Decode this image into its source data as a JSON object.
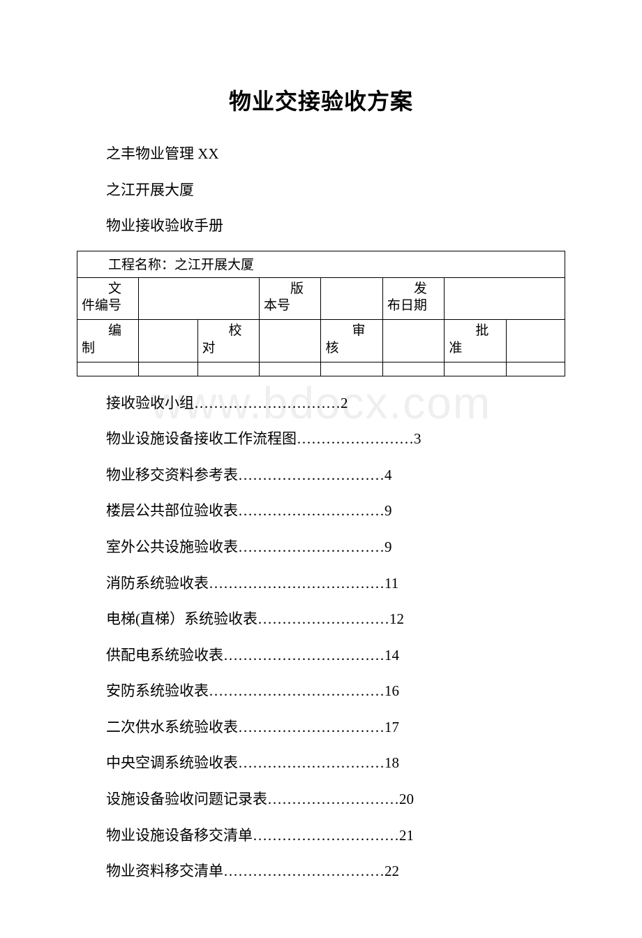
{
  "title": "物业交接验收方案",
  "intro": {
    "line1": "之丰物业管理 XX",
    "line2": "之江开展大厦",
    "line3": "物业接收验收手册"
  },
  "meta_table": {
    "project_label": "工程名称：之江开展大厦",
    "row2": {
      "c1": "文件编号",
      "c2": "",
      "c3": "版本号",
      "c4": "",
      "c5": "发布日期",
      "c6": ""
    },
    "row3": {
      "c1": "编制",
      "c2": "",
      "c3": "校对",
      "c4": "",
      "c5": "审核",
      "c6": "",
      "c7": "批准",
      "c8": ""
    }
  },
  "toc": [
    {
      "label": "接收验收小组",
      "dots": "…………………………",
      "page": "2"
    },
    {
      "label": "物业设施设备接收工作流程图",
      "dots": "……………………",
      "page": "3"
    },
    {
      "label": "物业移交资料参考表",
      "dots": "…………………………",
      "page": "4"
    },
    {
      "label": "楼层公共部位验收表",
      "dots": "…………………………",
      "page": "9"
    },
    {
      "label": "室外公共设施验收表",
      "dots": "…………………………",
      "page": "9"
    },
    {
      "label": "消防系统验收表",
      "dots": "………………………………",
      "page": "11"
    },
    {
      "label": "电梯(直梯）系统验收表",
      "dots": "………………………",
      "page": "12"
    },
    {
      "label": "供配电系统验收表",
      "dots": "……………………………",
      "page": "14"
    },
    {
      "label": "安防系统验收表",
      "dots": "………………………………",
      "page": "16"
    },
    {
      "label": "二次供水系统验收表",
      "dots": "…………………………",
      "page": "17"
    },
    {
      "label": "中央空调系统验收表",
      "dots": "…………………………",
      "page": "18"
    },
    {
      "label": "设施设备验收问题记录表",
      "dots": "………………………",
      "page": "20"
    },
    {
      "label": "物业设施设备移交清单",
      "dots": "…………………………",
      "page": "21"
    },
    {
      "label": "物业资料移交清单",
      "dots": "……………………………",
      "page": "22"
    }
  ],
  "watermark": "www.bdocx.com"
}
